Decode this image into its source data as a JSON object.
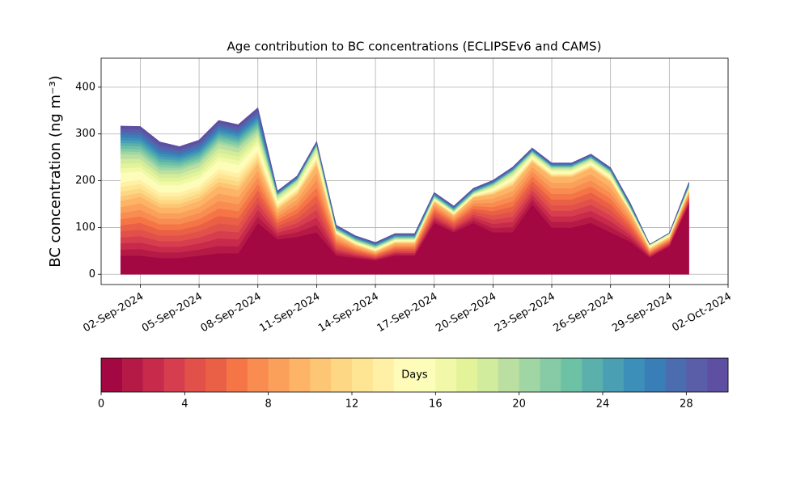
{
  "chart_data": {
    "type": "stacked_area",
    "title": "Age contribution to BC concentrations (ECLIPSEv6 and CAMS)",
    "ylabel": "BC concentration (ng m⁻³)",
    "x": [
      "2024-09-01",
      "2024-09-02",
      "2024-09-03",
      "2024-09-04",
      "2024-09-05",
      "2024-09-06",
      "2024-09-07",
      "2024-09-08",
      "2024-09-09",
      "2024-09-10",
      "2024-09-11",
      "2024-09-12",
      "2024-09-13",
      "2024-09-14",
      "2024-09-15",
      "2024-09-16",
      "2024-09-17",
      "2024-09-18",
      "2024-09-19",
      "2024-09-20",
      "2024-09-21",
      "2024-09-22",
      "2024-09-23",
      "2024-09-24",
      "2024-09-25",
      "2024-09-26",
      "2024-09-27",
      "2024-09-28",
      "2024-09-29",
      "2024-09-30"
    ],
    "series": [
      {
        "color": "#a40843",
        "values": [
          40,
          40,
          35,
          35,
          40,
          45,
          45,
          110,
          75,
          80,
          90,
          40,
          35,
          30,
          40,
          40,
          110,
          90,
          110,
          90,
          90,
          150,
          100,
          100,
          110,
          90,
          70,
          36,
          60,
          150
        ]
      },
      {
        "color": "#b51a47",
        "values": [
          13,
          14,
          12,
          12,
          13,
          16,
          15,
          14,
          7,
          10,
          16,
          5,
          3,
          2,
          3,
          3,
          5,
          4,
          6,
          9,
          11,
          10,
          12,
          12,
          13,
          12,
          7,
          2,
          2,
          3
        ]
      },
      {
        "color": "#c72a4a",
        "values": [
          13,
          14,
          12,
          12,
          13,
          16,
          15,
          14,
          7,
          10,
          16,
          5,
          3,
          2,
          3,
          3,
          5,
          4,
          6,
          9,
          11,
          10,
          12,
          12,
          13,
          12,
          7,
          2,
          2,
          3
        ]
      },
      {
        "color": "#d63e4f",
        "values": [
          13,
          14,
          12,
          12,
          13,
          16,
          15,
          14,
          7,
          10,
          16,
          5,
          3,
          2,
          3,
          3,
          5,
          4,
          6,
          9,
          11,
          10,
          12,
          12,
          13,
          12,
          7,
          2,
          2,
          3
        ]
      },
      {
        "color": "#e1514a",
        "values": [
          13,
          14,
          12,
          12,
          13,
          16,
          15,
          14,
          7,
          10,
          16,
          5,
          3,
          2,
          3,
          3,
          5,
          4,
          6,
          9,
          11,
          10,
          12,
          12,
          13,
          12,
          7,
          2,
          2,
          3
        ]
      },
      {
        "color": "#ea6046",
        "values": [
          13,
          14,
          12,
          12,
          13,
          16,
          15,
          14,
          7,
          10,
          16,
          5,
          3,
          2,
          3,
          3,
          5,
          4,
          6,
          9,
          11,
          10,
          12,
          12,
          13,
          12,
          7,
          2,
          2,
          3
        ]
      },
      {
        "color": "#f57547",
        "values": [
          13,
          14,
          12,
          12,
          13,
          16,
          15,
          14,
          7,
          10,
          16,
          5,
          3,
          2,
          3,
          3,
          5,
          4,
          6,
          9,
          11,
          10,
          12,
          12,
          13,
          12,
          7,
          2,
          2,
          3
        ]
      },
      {
        "color": "#f88c51",
        "values": [
          13,
          14,
          12,
          12,
          13,
          16,
          15,
          14,
          7,
          10,
          16,
          5,
          3,
          2,
          3,
          3,
          5,
          4,
          6,
          9,
          11,
          10,
          12,
          12,
          13,
          12,
          7,
          2,
          2,
          3
        ]
      },
      {
        "color": "#fba05b",
        "values": [
          13,
          14,
          12,
          12,
          13,
          16,
          15,
          14,
          7,
          10,
          16,
          5,
          3,
          2,
          3,
          3,
          5,
          4,
          6,
          9,
          11,
          10,
          12,
          12,
          13,
          12,
          7,
          2,
          2,
          3
        ]
      },
      {
        "color": "#fdb466",
        "values": [
          13,
          14,
          12,
          12,
          13,
          16,
          15,
          14,
          7,
          10,
          16,
          5,
          3,
          2,
          3,
          3,
          5,
          4,
          6,
          9,
          11,
          10,
          12,
          12,
          13,
          12,
          7,
          2,
          2,
          3
        ]
      },
      {
        "color": "#fdc675",
        "values": [
          10,
          9,
          8,
          8,
          8,
          9,
          9,
          7,
          3,
          3,
          4,
          1,
          1,
          1,
          1,
          1,
          1,
          1,
          1,
          2,
          3,
          2,
          2,
          2,
          2,
          2,
          1,
          1,
          1,
          1
        ]
      },
      {
        "color": "#fed785",
        "values": [
          10,
          9,
          8,
          8,
          8,
          9,
          9,
          7,
          3,
          3,
          4,
          1,
          1,
          1,
          1,
          1,
          1,
          1,
          1,
          2,
          3,
          2,
          2,
          2,
          2,
          2,
          1,
          1,
          1,
          1
        ]
      },
      {
        "color": "#fee593",
        "values": [
          10,
          9,
          8,
          8,
          8,
          9,
          9,
          7,
          3,
          3,
          4,
          1,
          1,
          1,
          1,
          1,
          1,
          1,
          1,
          2,
          3,
          2,
          2,
          2,
          2,
          2,
          1,
          1,
          1,
          1
        ]
      },
      {
        "color": "#fff0a6",
        "values": [
          10,
          9,
          8,
          8,
          8,
          9,
          9,
          7,
          3,
          3,
          4,
          1,
          1,
          1,
          1,
          1,
          1,
          1,
          1,
          2,
          3,
          2,
          2,
          2,
          2,
          2,
          1,
          1,
          1,
          1
        ]
      },
      {
        "color": "#fffbb9",
        "values": [
          10,
          9,
          8,
          8,
          8,
          9,
          9,
          7,
          3,
          3,
          4,
          1,
          1,
          1,
          1,
          1,
          1,
          1,
          1,
          2,
          3,
          2,
          2,
          2,
          2,
          2,
          1,
          1,
          1,
          1
        ]
      },
      {
        "color": "#fbfdb9",
        "values": [
          10,
          9,
          8,
          8,
          8,
          9,
          9,
          7,
          3,
          3,
          4,
          1,
          1,
          1,
          1,
          1,
          1,
          1,
          1,
          2,
          3,
          2,
          2,
          2,
          2,
          2,
          1,
          1,
          1,
          1
        ]
      },
      {
        "color": "#f1f9a9",
        "values": [
          10,
          9,
          8,
          8,
          8,
          9,
          9,
          7,
          3,
          3,
          4,
          1,
          1,
          1,
          1,
          1,
          1,
          1,
          1,
          2,
          3,
          2,
          2,
          2,
          2,
          2,
          1,
          1,
          1,
          1
        ]
      },
      {
        "color": "#e3f399",
        "values": [
          10,
          9,
          8,
          8,
          8,
          9,
          9,
          7,
          3,
          3,
          4,
          1,
          1,
          1,
          1,
          1,
          1,
          1,
          1,
          2,
          3,
          2,
          2,
          2,
          2,
          2,
          1,
          1,
          1,
          1
        ]
      },
      {
        "color": "#d1ec9c",
        "values": [
          10,
          9,
          8,
          8,
          8,
          9,
          9,
          7,
          3,
          3,
          4,
          1,
          1,
          1,
          1,
          1,
          1,
          1,
          1,
          2,
          3,
          2,
          2,
          2,
          2,
          2,
          1,
          1,
          1,
          1
        ]
      },
      {
        "color": "#badfa1",
        "values": [
          10,
          9,
          8,
          8,
          8,
          9,
          9,
          7,
          3,
          3,
          4,
          1,
          1,
          1,
          1,
          1,
          1,
          1,
          1,
          2,
          3,
          2,
          2,
          2,
          2,
          2,
          1,
          1,
          1,
          1
        ]
      },
      {
        "color": "#a0d6a4",
        "values": [
          6,
          6,
          6,
          5,
          5,
          5,
          5,
          5,
          1,
          1,
          1,
          1,
          1,
          1,
          1,
          1,
          1,
          1,
          1,
          1,
          1,
          1,
          1,
          1,
          1,
          1,
          1,
          0,
          0,
          1
        ]
      },
      {
        "color": "#86cba5",
        "values": [
          6,
          6,
          6,
          5,
          5,
          5,
          5,
          5,
          1,
          1,
          1,
          1,
          1,
          1,
          1,
          1,
          1,
          1,
          1,
          1,
          1,
          1,
          1,
          1,
          1,
          1,
          1,
          0,
          0,
          1
        ]
      },
      {
        "color": "#6dc1a5",
        "values": [
          6,
          6,
          6,
          5,
          5,
          5,
          5,
          5,
          1,
          1,
          1,
          1,
          1,
          1,
          1,
          1,
          1,
          1,
          1,
          1,
          1,
          1,
          1,
          1,
          1,
          1,
          1,
          0,
          0,
          1
        ]
      },
      {
        "color": "#5bb0ab",
        "values": [
          6,
          6,
          6,
          5,
          5,
          5,
          5,
          5,
          1,
          1,
          1,
          1,
          1,
          1,
          1,
          1,
          1,
          1,
          1,
          1,
          1,
          1,
          1,
          1,
          1,
          1,
          1,
          0,
          0,
          1
        ]
      },
      {
        "color": "#4aa0b2",
        "values": [
          6,
          6,
          6,
          5,
          5,
          5,
          5,
          5,
          1,
          1,
          1,
          1,
          1,
          1,
          1,
          1,
          1,
          1,
          1,
          1,
          1,
          1,
          1,
          1,
          1,
          1,
          1,
          0,
          0,
          1
        ]
      },
      {
        "color": "#3b8fb9",
        "values": [
          6,
          6,
          6,
          5,
          5,
          5,
          5,
          5,
          1,
          1,
          1,
          1,
          1,
          1,
          1,
          1,
          1,
          1,
          1,
          1,
          1,
          1,
          1,
          1,
          1,
          1,
          1,
          0,
          0,
          1
        ]
      },
      {
        "color": "#3a7eb8",
        "values": [
          6,
          6,
          6,
          5,
          5,
          5,
          5,
          5,
          1,
          1,
          1,
          1,
          1,
          1,
          1,
          1,
          1,
          1,
          1,
          1,
          1,
          1,
          1,
          1,
          1,
          1,
          1,
          0,
          0,
          1
        ]
      },
      {
        "color": "#4b6db0",
        "values": [
          6,
          6,
          6,
          5,
          5,
          5,
          5,
          5,
          1,
          1,
          1,
          1,
          1,
          1,
          1,
          1,
          1,
          1,
          1,
          1,
          1,
          1,
          1,
          1,
          1,
          1,
          1,
          0,
          0,
          1
        ]
      },
      {
        "color": "#5a5da8",
        "values": [
          6,
          6,
          6,
          5,
          5,
          5,
          5,
          5,
          1,
          1,
          1,
          1,
          1,
          1,
          1,
          1,
          1,
          1,
          1,
          1,
          1,
          1,
          1,
          1,
          1,
          1,
          1,
          0,
          0,
          1
        ]
      },
      {
        "color": "#5e4fa2",
        "values": [
          6,
          6,
          6,
          5,
          5,
          5,
          5,
          5,
          1,
          1,
          1,
          1,
          1,
          1,
          1,
          1,
          1,
          1,
          1,
          1,
          1,
          1,
          1,
          1,
          1,
          1,
          1,
          0,
          0,
          1
        ]
      }
    ],
    "xlim": [
      "2024-08-31",
      "2024-10-02"
    ],
    "xticks": [
      {
        "value": "2024-09-02",
        "label": "02-Sep-2024"
      },
      {
        "value": "2024-09-05",
        "label": "05-Sep-2024"
      },
      {
        "value": "2024-09-08",
        "label": "08-Sep-2024"
      },
      {
        "value": "2024-09-11",
        "label": "11-Sep-2024"
      },
      {
        "value": "2024-09-14",
        "label": "14-Sep-2024"
      },
      {
        "value": "2024-09-17",
        "label": "17-Sep-2024"
      },
      {
        "value": "2024-09-20",
        "label": "20-Sep-2024"
      },
      {
        "value": "2024-09-23",
        "label": "23-Sep-2024"
      },
      {
        "value": "2024-09-26",
        "label": "26-Sep-2024"
      },
      {
        "value": "2024-09-29",
        "label": "29-Sep-2024"
      },
      {
        "value": "2024-10-02",
        "label": "02-Oct-2024"
      }
    ],
    "ylim": [
      -22,
      462
    ],
    "yticks": [
      0,
      100,
      200,
      300,
      400
    ],
    "grid": true,
    "colorbar": {
      "label": "Days",
      "lim": [
        0,
        30
      ],
      "ticks": [
        0,
        4,
        8,
        12,
        16,
        20,
        24,
        28
      ]
    }
  }
}
